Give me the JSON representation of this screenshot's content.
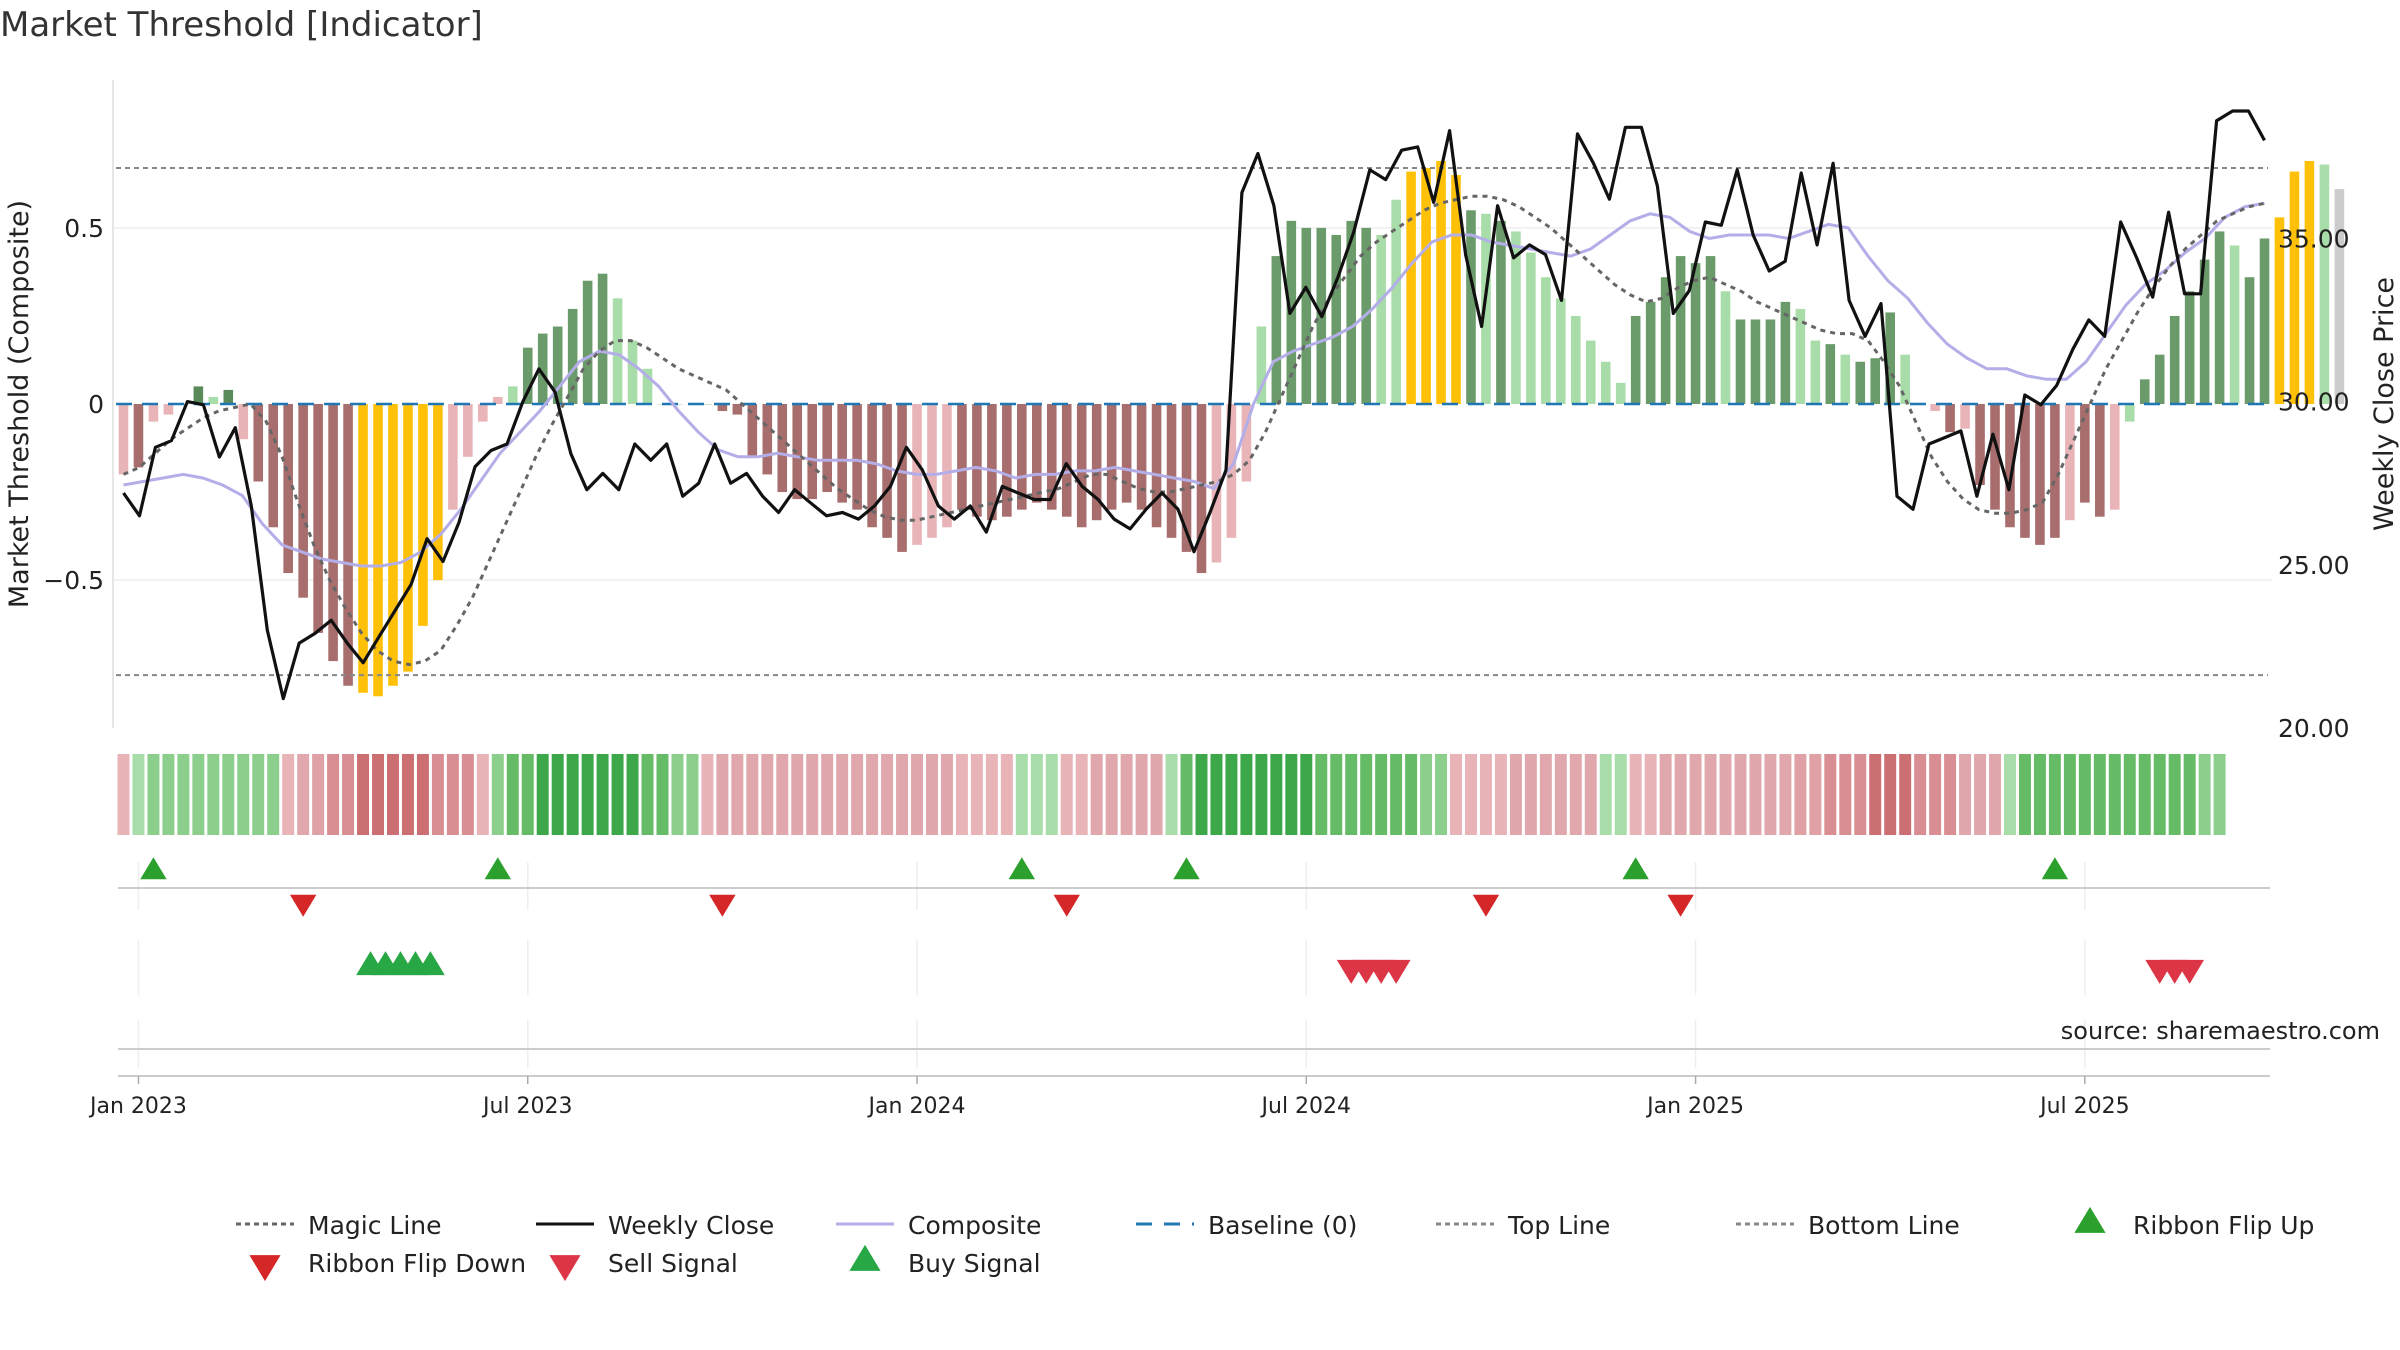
{
  "chart_data": {
    "type": "bar+line",
    "title": "Market Threshold [Indicator]",
    "ylabel_left": "Market Threshold (Composite)",
    "ylabel_right": "Weekly Close Price",
    "source": "source: sharemaestro.com",
    "y_left_ticks": [
      "0.5",
      "0",
      "−0.5"
    ],
    "y_left_tick_values": [
      0.5,
      0,
      -0.5
    ],
    "y_left_range": [
      -0.92,
      0.92
    ],
    "y_right_ticks": [
      "35.00",
      "30.00",
      "25.00",
      "20.00"
    ],
    "y_right_tick_values": [
      35,
      30,
      25,
      20
    ],
    "y_right_range": [
      20,
      39.85
    ],
    "top_line": 0.67,
    "bottom_line": -0.77,
    "x_ticks": [
      "Jan 2023",
      "Jul 2023",
      "Jan 2024",
      "Jul 2024",
      "Jan 2025",
      "Jul 2025"
    ],
    "x_tick_weeks": [
      1,
      27,
      53,
      79,
      105,
      131
    ],
    "weeks_total": 144,
    "composite_histogram": [
      -0.2,
      -0.18,
      -0.05,
      -0.03,
      0,
      0.05,
      0.02,
      0.04,
      -0.1,
      -0.22,
      -0.35,
      -0.48,
      -0.55,
      -0.65,
      -0.73,
      -0.8,
      -0.82,
      -0.83,
      -0.8,
      -0.76,
      -0.63,
      -0.5,
      -0.3,
      -0.15,
      -0.05,
      0.02,
      0.05,
      0.16,
      0.2,
      0.22,
      0.27,
      0.35,
      0.37,
      0.3,
      0.18,
      0.1,
      0,
      0,
      0,
      0,
      -0.02,
      -0.03,
      -0.15,
      -0.2,
      -0.25,
      -0.27,
      -0.27,
      -0.25,
      -0.28,
      -0.3,
      -0.35,
      -0.38,
      -0.42,
      -0.4,
      -0.38,
      -0.35,
      -0.3,
      -0.32,
      -0.33,
      -0.32,
      -0.3,
      -0.28,
      -0.3,
      -0.32,
      -0.35,
      -0.33,
      -0.3,
      -0.28,
      -0.3,
      -0.35,
      -0.38,
      -0.42,
      -0.48,
      -0.45,
      -0.38,
      -0.22,
      0.22,
      0.42,
      0.52,
      0.5,
      0.5,
      0.48,
      0.52,
      0.5,
      0.48,
      0.58,
      0.66,
      0.67,
      0.69,
      0.65,
      0.55,
      0.54,
      0.52,
      0.49,
      0.43,
      0.36,
      0.3,
      0.25,
      0.18,
      0.12,
      0.06,
      0.25,
      0.29,
      0.36,
      0.42,
      0.4,
      0.42,
      0.32,
      0.24,
      0.24,
      0.24,
      0.29,
      0.27,
      0.18,
      0.17,
      0.14,
      0.12,
      0.13,
      0.26,
      0.14,
      0,
      -0.02,
      -0.08,
      -0.07,
      -0.23,
      -0.3,
      -0.35,
      -0.38,
      -0.4,
      -0.38,
      -0.33,
      -0.28,
      -0.32,
      -0.3,
      -0.05,
      0.07,
      0.14,
      0.25,
      0.32,
      0.41,
      0.49,
      0.45,
      0.36,
      0.47,
      0.53,
      0.66,
      0.69,
      0.68,
      0.61
    ],
    "histogram_colors": [
      "#e8b4b8",
      "#a86d6d",
      "#e8b4b8",
      "#e8b4b8",
      "#6b9a6b",
      "#5a8a5a",
      "#a8dca8",
      "#5a8a5a",
      "#e8b4b8",
      "#a86d6d",
      "#a86d6d",
      "#a86d6d",
      "#a86d6d",
      "#a86d6d",
      "#a86d6d",
      "#a86d6d",
      "#ffc107",
      "#ffc107",
      "#ffc107",
      "#ffc107",
      "#ffc107",
      "#ffc107",
      "#e8b4b8",
      "#e8b4b8",
      "#e8b4b8",
      "#e8b4b8",
      "#a8dca8",
      "#6b9a6b",
      "#6b9a6b",
      "#6b9a6b",
      "#6b9a6b",
      "#6b9a6b",
      "#6b9a6b",
      "#a8dca8",
      "#a8dca8",
      "#a8dca8",
      "#a8dca8",
      "#a8dca8",
      "#a8dca8",
      "#a8dca8",
      "#a86d6d",
      "#a86d6d",
      "#a86d6d",
      "#a86d6d",
      "#a86d6d",
      "#a86d6d",
      "#a86d6d",
      "#a86d6d",
      "#a86d6d",
      "#a86d6d",
      "#a86d6d",
      "#a86d6d",
      "#a86d6d",
      "#e8b4b8",
      "#e8b4b8",
      "#e8b4b8",
      "#a86d6d",
      "#a86d6d",
      "#a86d6d",
      "#a86d6d",
      "#a86d6d",
      "#a86d6d",
      "#a86d6d",
      "#a86d6d",
      "#a86d6d",
      "#a86d6d",
      "#a86d6d",
      "#a86d6d",
      "#a86d6d",
      "#a86d6d",
      "#a86d6d",
      "#a86d6d",
      "#a86d6d",
      "#e8b4b8",
      "#e8b4b8",
      "#e8b4b8",
      "#a8dca8",
      "#6b9a6b",
      "#6b9a6b",
      "#6b9a6b",
      "#6b9a6b",
      "#6b9a6b",
      "#6b9a6b",
      "#6b9a6b",
      "#a8dca8",
      "#a8dca8",
      "#ffc107",
      "#ffc107",
      "#ffc107",
      "#ffc107",
      "#6b9a6b",
      "#a8dca8",
      "#6b9a6b",
      "#a8dca8",
      "#a8dca8",
      "#a8dca8",
      "#a8dca8",
      "#a8dca8",
      "#a8dca8",
      "#a8dca8",
      "#a8dca8",
      "#6b9a6b",
      "#6b9a6b",
      "#6b9a6b",
      "#6b9a6b",
      "#6b9a6b",
      "#6b9a6b",
      "#a8dca8",
      "#6b9a6b",
      "#6b9a6b",
      "#6b9a6b",
      "#6b9a6b",
      "#a8dca8",
      "#a8dca8",
      "#6b9a6b",
      "#a8dca8",
      "#6b9a6b",
      "#6b9a6b",
      "#6b9a6b",
      "#a8dca8",
      "#a8dca8",
      "#e8b4b8",
      "#a86d6d",
      "#e8b4b8",
      "#a86d6d",
      "#a86d6d",
      "#a86d6d",
      "#a86d6d",
      "#a86d6d",
      "#a86d6d",
      "#e8b4b8",
      "#a86d6d",
      "#a86d6d",
      "#e8b4b8",
      "#a8dca8",
      "#6b9a6b",
      "#6b9a6b",
      "#6b9a6b",
      "#6b9a6b",
      "#6b9a6b",
      "#6b9a6b",
      "#a8dca8",
      "#6b9a6b",
      "#6b9a6b",
      "#ffc107",
      "#ffc107",
      "#ffc107",
      "#a8dca8"
    ],
    "magic_line": [
      -0.2,
      -0.18,
      -0.14,
      -0.1,
      -0.07,
      -0.04,
      -0.02,
      -0.01,
      0,
      -0.05,
      -0.15,
      -0.28,
      -0.4,
      -0.5,
      -0.58,
      -0.65,
      -0.7,
      -0.73,
      -0.74,
      -0.73,
      -0.7,
      -0.63,
      -0.55,
      -0.45,
      -0.35,
      -0.25,
      -0.15,
      -0.06,
      0.02,
      0.1,
      0.15,
      0.18,
      0.18,
      0.16,
      0.13,
      0.1,
      0.08,
      0.06,
      0.04,
      0,
      -0.04,
      -0.08,
      -0.12,
      -0.16,
      -0.2,
      -0.24,
      -0.27,
      -0.3,
      -0.32,
      -0.33,
      -0.33,
      -0.32,
      -0.31,
      -0.3,
      -0.29,
      -0.28,
      -0.27,
      -0.26,
      -0.25,
      -0.24,
      -0.22,
      -0.2,
      -0.2,
      -0.22,
      -0.24,
      -0.25,
      -0.25,
      -0.24,
      -0.23,
      -0.22,
      -0.2,
      -0.16,
      -0.08,
      0.02,
      0.12,
      0.22,
      0.3,
      0.36,
      0.42,
      0.46,
      0.49,
      0.52,
      0.55,
      0.57,
      0.58,
      0.59,
      0.59,
      0.58,
      0.56,
      0.53,
      0.5,
      0.46,
      0.42,
      0.38,
      0.34,
      0.31,
      0.29,
      0.3,
      0.33,
      0.35,
      0.36,
      0.34,
      0.32,
      0.29,
      0.27,
      0.25,
      0.23,
      0.21,
      0.2,
      0.2,
      0.18,
      0.12,
      0.05,
      -0.05,
      -0.15,
      -0.22,
      -0.27,
      -0.3,
      -0.31,
      -0.31,
      -0.3,
      -0.28,
      -0.2,
      -0.1,
      0,
      0.1,
      0.18,
      0.26,
      0.33,
      0.39,
      0.44,
      0.48,
      0.52,
      0.54,
      0.56,
      0.57
    ],
    "composite_line": [
      -0.23,
      -0.22,
      -0.21,
      -0.2,
      -0.21,
      -0.23,
      -0.26,
      -0.34,
      -0.4,
      -0.42,
      -0.44,
      -0.45,
      -0.46,
      -0.46,
      -0.45,
      -0.42,
      -0.37,
      -0.3,
      -0.22,
      -0.14,
      -0.08,
      -0.02,
      0.05,
      0.12,
      0.15,
      0.14,
      0.1,
      0.05,
      -0.02,
      -0.08,
      -0.13,
      -0.15,
      -0.15,
      -0.14,
      -0.15,
      -0.16,
      -0.16,
      -0.16,
      -0.17,
      -0.19,
      -0.2,
      -0.2,
      -0.19,
      -0.18,
      -0.19,
      -0.21,
      -0.2,
      -0.2,
      -0.19,
      -0.19,
      -0.18,
      -0.19,
      -0.2,
      -0.21,
      -0.22,
      -0.24,
      -0.17,
      0,
      0.12,
      0.15,
      0.17,
      0.19,
      0.22,
      0.27,
      0.33,
      0.4,
      0.46,
      0.48,
      0.48,
      0.46,
      0.45,
      0.44,
      0.43,
      0.42,
      0.44,
      0.48,
      0.52,
      0.54,
      0.53,
      0.49,
      0.47,
      0.48,
      0.48,
      0.48,
      0.47,
      0.49,
      0.51,
      0.5,
      0.42,
      0.35,
      0.3,
      0.23,
      0.17,
      0.13,
      0.1,
      0.1,
      0.08,
      0.07,
      0.07,
      0.12,
      0.2,
      0.28,
      0.34,
      0.38,
      0.43,
      0.47,
      0.53,
      0.56,
      0.57
    ],
    "weekly_close": [
      27.2,
      26.5,
      28.6,
      28.8,
      30.0,
      29.9,
      28.3,
      29.2,
      26.8,
      23.0,
      20.9,
      22.6,
      22.9,
      23.3,
      22.6,
      22.0,
      22.8,
      23.6,
      24.4,
      25.8,
      25.1,
      26.3,
      28.0,
      28.5,
      28.7,
      30.0,
      31.0,
      30.3,
      28.4,
      27.3,
      27.8,
      27.3,
      28.7,
      28.2,
      28.7,
      27.1,
      27.5,
      28.7,
      27.5,
      27.8,
      27.1,
      26.6,
      27.3,
      26.9,
      26.5,
      26.6,
      26.4,
      26.8,
      27.4,
      28.6,
      27.9,
      26.8,
      26.4,
      26.8,
      26.0,
      27.4,
      27.2,
      27.0,
      27.0,
      28.1,
      27.4,
      27.0,
      26.4,
      26.1,
      26.7,
      27.2,
      26.7,
      25.4,
      26.6,
      27.9,
      36.4,
      37.6,
      36.0,
      32.7,
      33.5,
      32.6,
      33.8,
      35.2,
      37.1,
      36.8,
      37.7,
      37.8,
      36.1,
      38.3,
      34.5,
      32.3,
      36.0,
      34.4,
      34.8,
      34.5,
      33.1,
      38.2,
      37.3,
      36.2,
      38.4,
      38.4,
      36.6,
      32.7,
      33.4,
      35.5,
      35.4,
      37.1,
      35.1,
      34.0,
      34.3,
      37.0,
      34.8,
      37.3,
      33.1,
      32.0,
      33.0,
      27.1,
      26.7,
      28.7,
      28.9,
      29.1,
      27.1,
      29.0,
      27.3,
      30.2,
      29.9,
      30.5,
      31.6,
      32.5,
      32.0,
      35.5,
      34.4,
      33.2,
      35.8,
      33.3,
      33.3,
      38.6,
      38.9,
      38.9,
      38.0
    ],
    "ribbon_colors": [
      "#e8b4b8",
      "#a8dca8",
      "#8ccf8c",
      "#8ccf8c",
      "#8ccf8c",
      "#8ccf8c",
      "#8ccf8c",
      "#8ccf8c",
      "#8ccf8c",
      "#8ccf8c",
      "#8ccf8c",
      "#e8b4b8",
      "#e0a8ac",
      "#dfa1a5",
      "#d88e92",
      "#d88e92",
      "#cc6f73",
      "#cc6f73",
      "#cc6f73",
      "#cc6f73",
      "#cc6f73",
      "#d88e92",
      "#d88e92",
      "#d88e92",
      "#e8b4b8",
      "#8ccf8c",
      "#66bb66",
      "#66bb66",
      "#3da84a",
      "#3da84a",
      "#3da84a",
      "#3da84a",
      "#3da84a",
      "#3da84a",
      "#3da84a",
      "#66bb66",
      "#66bb66",
      "#8ccf8c",
      "#8ccf8c",
      "#e8b4b8",
      "#e0a8ac",
      "#e0a8ac",
      "#e0a8ac",
      "#e0a8ac",
      "#e0a8ac",
      "#e0a8ac",
      "#e0a8ac",
      "#e0a8ac",
      "#e0a8ac",
      "#e0a8ac",
      "#e0a8ac",
      "#e0a8ac",
      "#e0a8ac",
      "#e0a8ac",
      "#e0a8ac",
      "#e0a8ac",
      "#e8b4b8",
      "#e8b4b8",
      "#e8b4b8",
      "#e8b4b8",
      "#a8dca8",
      "#a8dca8",
      "#a8dca8",
      "#e8b4b8",
      "#e8b4b8",
      "#e0a8ac",
      "#e0a8ac",
      "#e0a8ac",
      "#e0a8ac",
      "#e0a8ac",
      "#a8dca8",
      "#66bb66",
      "#3da84a",
      "#3da84a",
      "#3da84a",
      "#3da84a",
      "#3da84a",
      "#3da84a",
      "#3da84a",
      "#3da84a",
      "#66bb66",
      "#66bb66",
      "#66bb66",
      "#66bb66",
      "#66bb66",
      "#66bb66",
      "#66bb66",
      "#8ccf8c",
      "#8ccf8c",
      "#e8b4b8",
      "#e8b4b8",
      "#e8b4b8",
      "#e8b4b8",
      "#e0a8ac",
      "#e0a8ac",
      "#e0a8ac",
      "#e0a8ac",
      "#e0a8ac",
      "#e0a8ac",
      "#a8dca8",
      "#a8dca8",
      "#e8b4b8",
      "#e8b4b8",
      "#e0a8ac",
      "#e0a8ac",
      "#e0a8ac",
      "#e0a8ac",
      "#e0a8ac",
      "#e0a8ac",
      "#e0a8ac",
      "#e0a8ac",
      "#e0a8ac",
      "#dfa1a5",
      "#dfa1a5",
      "#d88e92",
      "#d88e92",
      "#d88e92",
      "#cc6f73",
      "#cc6f73",
      "#cc6f73",
      "#d88e92",
      "#d88e92",
      "#d88e92",
      "#e0a8ac",
      "#e0a8ac",
      "#e0a8ac",
      "#a8dca8",
      "#66bb66",
      "#66bb66",
      "#66bb66",
      "#66bb66",
      "#66bb66",
      "#66bb66",
      "#66bb66",
      "#66bb66",
      "#66bb66",
      "#66bb66",
      "#66bb66",
      "#66bb66",
      "#8ccf8c",
      "#8ccf8c"
    ],
    "ribbon_flip_up_weeks": [
      2,
      25,
      60,
      71,
      101,
      129
    ],
    "ribbon_flip_down_weeks": [
      12,
      40,
      63,
      91,
      104
    ],
    "buy_signal_weeks": [
      16.5,
      17.5,
      18.5,
      19.5,
      20.5
    ],
    "sell_signal_weeks": [
      82,
      83,
      84,
      85,
      136,
      137,
      138
    ],
    "legend": [
      {
        "label": "Magic Line",
        "type": "dotted-line",
        "color": "#666666"
      },
      {
        "label": "Weekly Close",
        "type": "solid-line",
        "color": "#111111"
      },
      {
        "label": "Composite",
        "type": "solid-line",
        "color": "#b3aee8"
      },
      {
        "label": "Baseline (0)",
        "type": "dashed-line",
        "color": "#1f77b4"
      },
      {
        "label": "Top Line",
        "type": "dotted-line",
        "color": "#888888"
      },
      {
        "label": "Bottom Line",
        "type": "dotted-line",
        "color": "#888888"
      },
      {
        "label": "Ribbon Flip Up",
        "type": "triangle-up",
        "color": "#2ca02c"
      },
      {
        "label": "Ribbon Flip Down",
        "type": "triangle-down",
        "color": "#d62728"
      },
      {
        "label": "Sell Signal",
        "type": "triangle-down",
        "color": "#dc3545"
      },
      {
        "label": "Buy Signal",
        "type": "triangle-up",
        "color": "#28a745"
      }
    ]
  }
}
